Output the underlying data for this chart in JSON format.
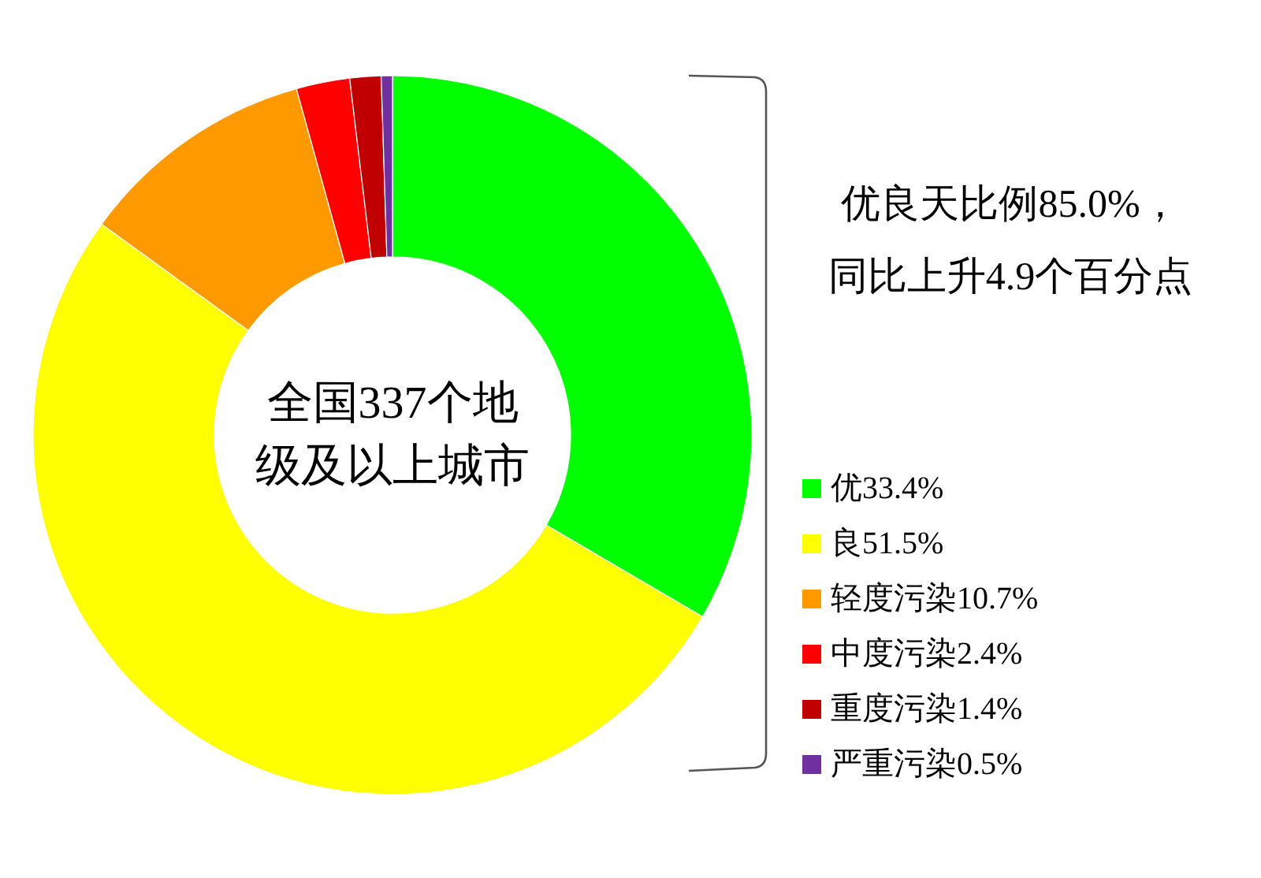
{
  "chart_data": {
    "type": "donut",
    "title": "全国337个地级及以上城市",
    "categories": [
      "优33.4%",
      "良51.5%",
      "轻度污染10.7%",
      "中度污染2.4%",
      "重度污染1.4%",
      "严重污染0.5%"
    ],
    "values": [
      33.4,
      51.5,
      10.7,
      2.4,
      1.4,
      0.5
    ],
    "colors": [
      "#00ff00",
      "#ffff00",
      "#ff9900",
      "#ff0000",
      "#c00000",
      "#7030a0"
    ],
    "annotations": [
      "优良天比例85.0%，",
      "同比上升4.9个百分点"
    ],
    "legend": "bottom right"
  }
}
